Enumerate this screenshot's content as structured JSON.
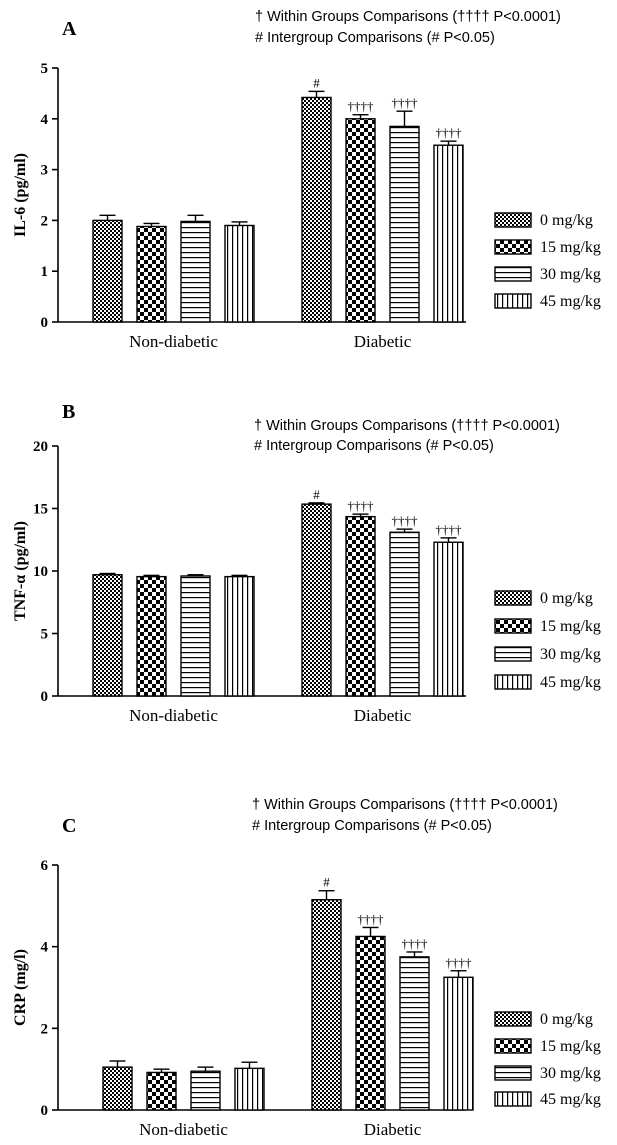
{
  "chart_data": [
    {
      "type": "bar",
      "panel": "A",
      "notes": [
        "† Within Groups Comparisons (†††† P<0.0001)",
        "# Intergroup Comparisons (# P<0.05)"
      ],
      "ylabel": "IL-6 (pg/ml)",
      "ylim": [
        0,
        5
      ],
      "yticks": [
        0,
        1,
        2,
        3,
        4,
        5
      ],
      "categories": [
        "Non-diabetic",
        "Diabetic"
      ],
      "series": [
        {
          "name": "0 mg/kg",
          "pattern": "checker",
          "values": [
            2.0,
            4.42
          ],
          "errors": [
            0.1,
            0.12
          ]
        },
        {
          "name": "15 mg/kg",
          "pattern": "dots",
          "values": [
            1.88,
            4.0
          ],
          "errors": [
            0.06,
            0.08
          ]
        },
        {
          "name": "30 mg/kg",
          "pattern": "hlines",
          "values": [
            1.98,
            3.85
          ],
          "errors": [
            0.12,
            0.3
          ]
        },
        {
          "name": "45 mg/kg",
          "pattern": "vlines",
          "values": [
            1.9,
            3.48
          ],
          "errors": [
            0.07,
            0.08
          ]
        }
      ],
      "annotations": [
        [
          "",
          "",
          "",
          ""
        ],
        [
          "#",
          "††††",
          "††††",
          "††††"
        ]
      ],
      "legend": "right"
    },
    {
      "type": "bar",
      "panel": "B",
      "notes": [
        "† Within Groups Comparisons (†††† P<0.0001)",
        "# Intergroup Comparisons (# P<0.05)"
      ],
      "ylabel": "TNF-α (pg/ml)",
      "ylim": [
        0,
        20
      ],
      "yticks": [
        0,
        5,
        10,
        15,
        20
      ],
      "categories": [
        "Non-diabetic",
        "Diabetic"
      ],
      "series": [
        {
          "name": "0 mg/kg",
          "pattern": "checker",
          "values": [
            9.7,
            15.35
          ],
          "errors": [
            0.1,
            0.1
          ]
        },
        {
          "name": "15 mg/kg",
          "pattern": "dots",
          "values": [
            9.55,
            14.35
          ],
          "errors": [
            0.1,
            0.2
          ]
        },
        {
          "name": "30 mg/kg",
          "pattern": "hlines",
          "values": [
            9.6,
            13.1
          ],
          "errors": [
            0.1,
            0.25
          ]
        },
        {
          "name": "45 mg/kg",
          "pattern": "vlines",
          "values": [
            9.55,
            12.3
          ],
          "errors": [
            0.1,
            0.35
          ]
        }
      ],
      "annotations": [
        [
          "",
          "",
          "",
          ""
        ],
        [
          "#",
          "††††",
          "††††",
          "††††"
        ]
      ],
      "legend": "right"
    },
    {
      "type": "bar",
      "panel": "C",
      "notes": [
        "† Within Groups Comparisons (†††† P<0.0001)",
        "# Intergroup Comparisons (# P<0.05)"
      ],
      "ylabel": "CRP (mg/l)",
      "ylim": [
        0,
        6
      ],
      "yticks": [
        0,
        2,
        4,
        6
      ],
      "categories": [
        "Non-diabetic",
        "Diabetic"
      ],
      "series": [
        {
          "name": "0 mg/kg",
          "pattern": "checker",
          "values": [
            1.05,
            5.15
          ],
          "errors": [
            0.15,
            0.22
          ]
        },
        {
          "name": "15 mg/kg",
          "pattern": "dots",
          "values": [
            0.92,
            4.25
          ],
          "errors": [
            0.08,
            0.22
          ]
        },
        {
          "name": "30 mg/kg",
          "pattern": "hlines",
          "values": [
            0.95,
            3.75
          ],
          "errors": [
            0.1,
            0.12
          ]
        },
        {
          "name": "45 mg/kg",
          "pattern": "vlines",
          "values": [
            1.02,
            3.25
          ],
          "errors": [
            0.15,
            0.16
          ]
        }
      ],
      "annotations": [
        [
          "",
          "",
          "",
          ""
        ],
        [
          "#",
          "††††",
          "††††",
          "††††"
        ]
      ],
      "legend": "right"
    }
  ]
}
